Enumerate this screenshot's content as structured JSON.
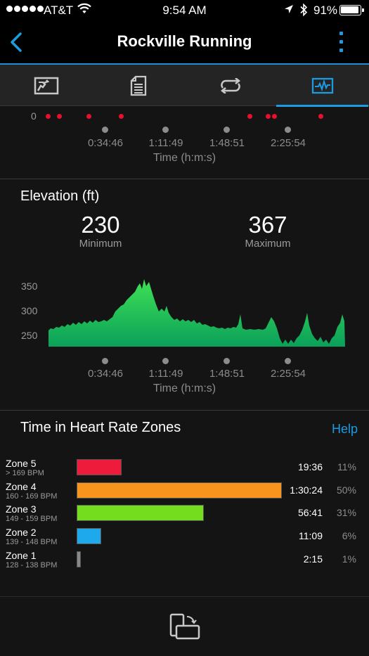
{
  "status_bar": {
    "carrier": "AT&T",
    "time": "9:54 AM",
    "battery": "91%",
    "battery_level": 0.91
  },
  "header": {
    "title": "Rockville Running",
    "back_icon": "chevron-left-icon",
    "menu_icon": "more-vertical-icon"
  },
  "tabs": [
    {
      "icon": "summary-icon",
      "active": false
    },
    {
      "icon": "details-icon",
      "active": false
    },
    {
      "icon": "laps-icon",
      "active": false
    },
    {
      "icon": "charts-icon",
      "active": true
    }
  ],
  "top_chart": {
    "y_zero": "0",
    "time_ticks": [
      "0:34:46",
      "1:11:49",
      "1:48:51",
      "2:25:54"
    ],
    "axis_title": "Time (h:m:s)"
  },
  "elevation": {
    "title": "Elevation (ft)",
    "minimum": "230",
    "minimum_label": "Minimum",
    "maximum": "367",
    "maximum_label": "Maximum",
    "y_ticks": [
      "350",
      "300",
      "250"
    ],
    "time_ticks": [
      "0:34:46",
      "1:11:49",
      "1:48:51",
      "2:25:54"
    ],
    "axis_title": "Time (h:m:s)"
  },
  "hr_zones": {
    "title": "Time in Heart Rate Zones",
    "help": "Help",
    "zones": [
      {
        "name": "Zone 5",
        "range": "> 169 BPM",
        "time": "19:36",
        "percent": "11%",
        "fraction": 0.11,
        "color": "#ee1c3a"
      },
      {
        "name": "Zone 4",
        "range": "160 - 169 BPM",
        "time": "1:30:24",
        "percent": "50%",
        "fraction": 0.5,
        "color": "#f7941d"
      },
      {
        "name": "Zone 3",
        "range": "149 - 159 BPM",
        "time": "56:41",
        "percent": "31%",
        "fraction": 0.31,
        "color": "#74dd1e"
      },
      {
        "name": "Zone 2",
        "range": "139 - 148 BPM",
        "time": "11:09",
        "percent": "6%",
        "fraction": 0.06,
        "color": "#1ea9ec"
      },
      {
        "name": "Zone 1",
        "range": "128 - 138 BPM",
        "time": "2:15",
        "percent": "1%",
        "fraction": 0.01,
        "color": "#888888"
      }
    ]
  },
  "footer": {
    "icon": "rotate-screen-icon"
  }
}
